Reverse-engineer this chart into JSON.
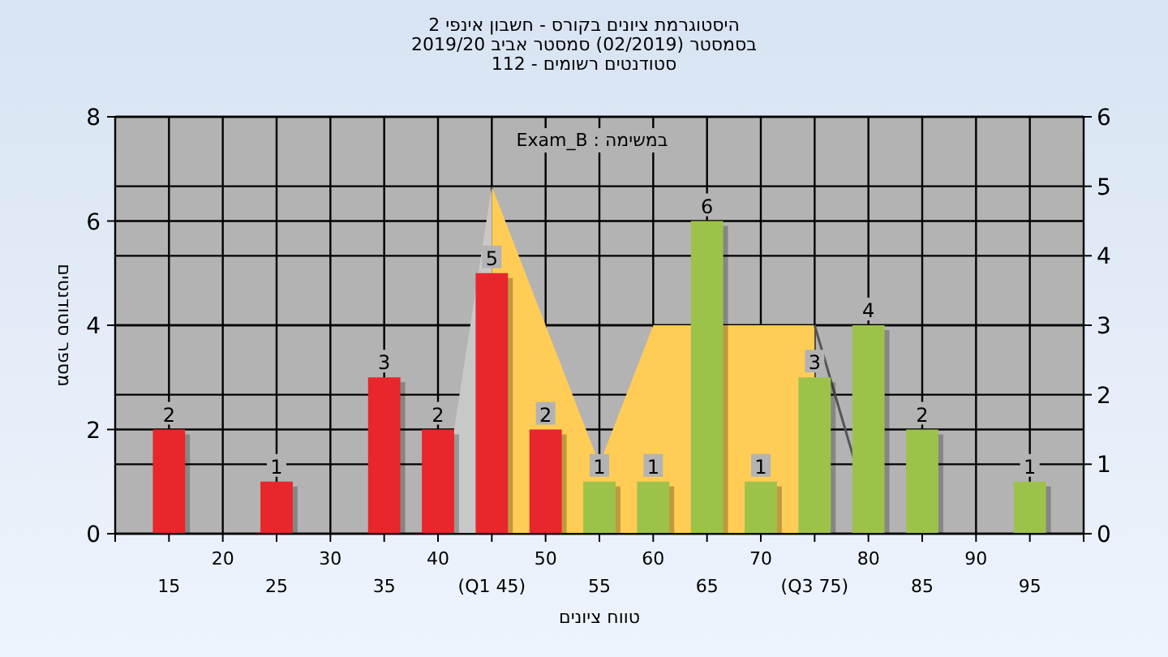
{
  "chart_data": {
    "type": "bar",
    "title": "היסטוגרמת ציונים בקורס - חשבון אינפי 2\nבסמסטר  (02/2019)  סמסטר אביב 2019/20\nסטודנטים רשומים - 112",
    "xlabel": "טווח ציונים",
    "ylabel": "מספר סטודנטים",
    "annotations": [
      "במשימה : Exam_B"
    ],
    "x": [
      15,
      25,
      35,
      40,
      45,
      50,
      55,
      60,
      65,
      70,
      75,
      80,
      85,
      95
    ],
    "series": [
      {
        "type": "area",
        "axis": "y2",
        "color": "#c8c8c8",
        "x": [
          40,
          45
        ],
        "values": [
          0,
          5
        ]
      },
      {
        "type": "area",
        "axis": "y2",
        "color": "#ffcc55",
        "x": [
          45,
          55,
          60,
          75
        ],
        "values": [
          5,
          1,
          3,
          3
        ]
      },
      {
        "type": "line",
        "axis": "y2",
        "color": "#555555",
        "x": [
          75,
          78.8
        ],
        "values": [
          3,
          1
        ]
      },
      {
        "colors": [
          "#e8262b",
          "#e8262b",
          "#e8262b",
          "#e8262b",
          "#e8262b",
          "#e8262b",
          "#9cc24a",
          "#9cc24a",
          "#9cc24a",
          "#9cc24a",
          "#9cc24a",
          "#9cc24a",
          "#9cc24a",
          "#9cc24a"
        ],
        "values": [
          2,
          1,
          3,
          2,
          5,
          2,
          1,
          1,
          6,
          1,
          3,
          4,
          2,
          1
        ],
        "value_labels": [
          "2",
          "1",
          "3",
          "2",
          "5",
          "2",
          "1",
          "1",
          "6",
          "1",
          "3",
          "4",
          "2",
          "1"
        ]
      }
    ],
    "xlim": [
      10,
      100
    ],
    "xticks": [
      {
        "value": 10,
        "label": null
      },
      20,
      30,
      40,
      50,
      60,
      70,
      80,
      90,
      {
        "value": 100,
        "label": null
      }
    ],
    "x2lim": [
      10,
      100
    ],
    "x2ticks": [
      15,
      25,
      35,
      {
        "value": 45,
        "label": "(Q1 45)"
      },
      55,
      65,
      {
        "value": 75,
        "label": "(Q3 75)"
      },
      85,
      95
    ],
    "ylim": [
      0,
      8
    ],
    "yticks": [
      0,
      2,
      4,
      6,
      8
    ],
    "y2lim": [
      0,
      6
    ],
    "y2ticks": [
      0,
      1,
      2,
      3,
      4,
      5,
      6
    ],
    "grid": true
  }
}
